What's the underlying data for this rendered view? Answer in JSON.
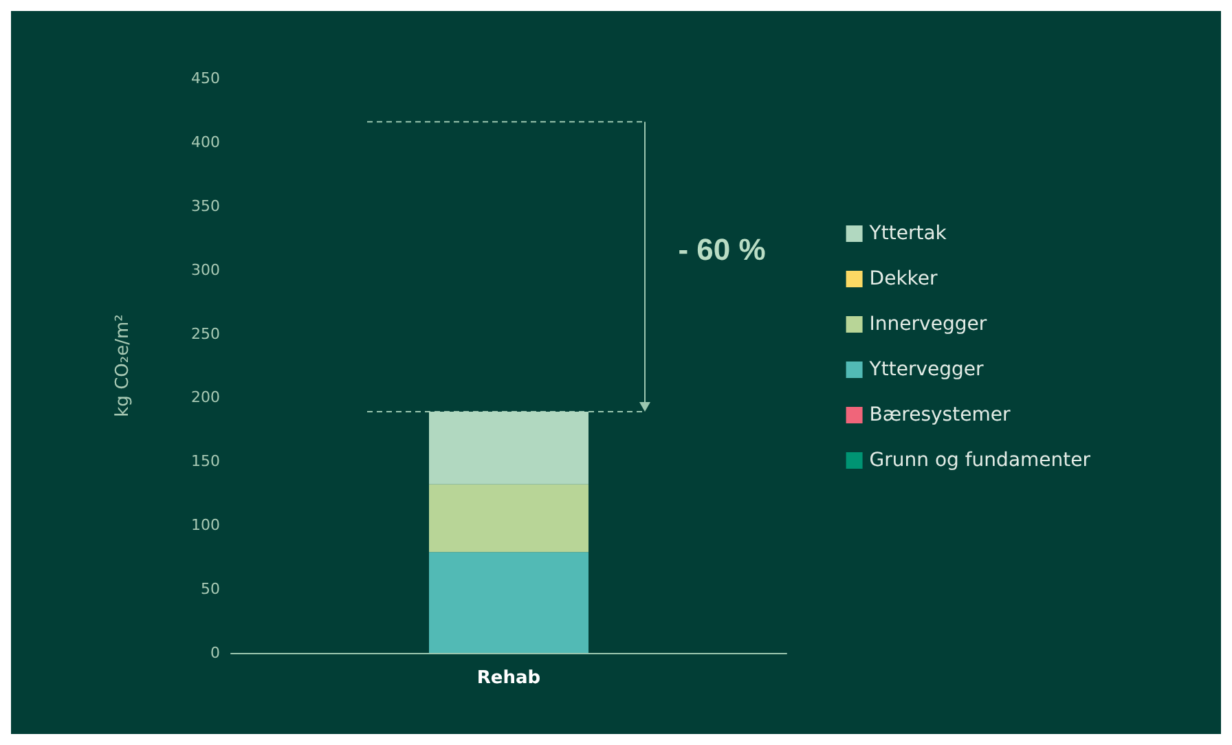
{
  "chart_data": {
    "type": "bar",
    "stacked": true,
    "ylabel": "kg CO₂e/m²",
    "categories": [
      "Rehab"
    ],
    "series": [
      {
        "name": "Grunn og fundamenter",
        "color": "#009473",
        "values": [
          0
        ]
      },
      {
        "name": "Bæresystemer",
        "color": "#f0657a",
        "values": [
          0
        ]
      },
      {
        "name": "Yttervegger",
        "color": "#52bab5",
        "values": [
          79
        ]
      },
      {
        "name": "Innervegger",
        "color": "#b8d597",
        "values": [
          53
        ]
      },
      {
        "name": "Dekker",
        "color": "#fbd964",
        "values": [
          0
        ]
      },
      {
        "name": "Yttertak",
        "color": "#b1d8c0",
        "values": [
          57
        ]
      }
    ],
    "ylim": [
      0,
      450
    ],
    "yticks": [
      0,
      50,
      100,
      150,
      200,
      250,
      300,
      350,
      400,
      450
    ],
    "grid": false,
    "legend": "right",
    "ref_lines": [
      {
        "axis": "y",
        "value": 416,
        "line_style": "dashed"
      },
      {
        "axis": "y",
        "value": 189,
        "line_style": "dashed"
      }
    ],
    "annotations": [
      "- 60 %"
    ]
  }
}
